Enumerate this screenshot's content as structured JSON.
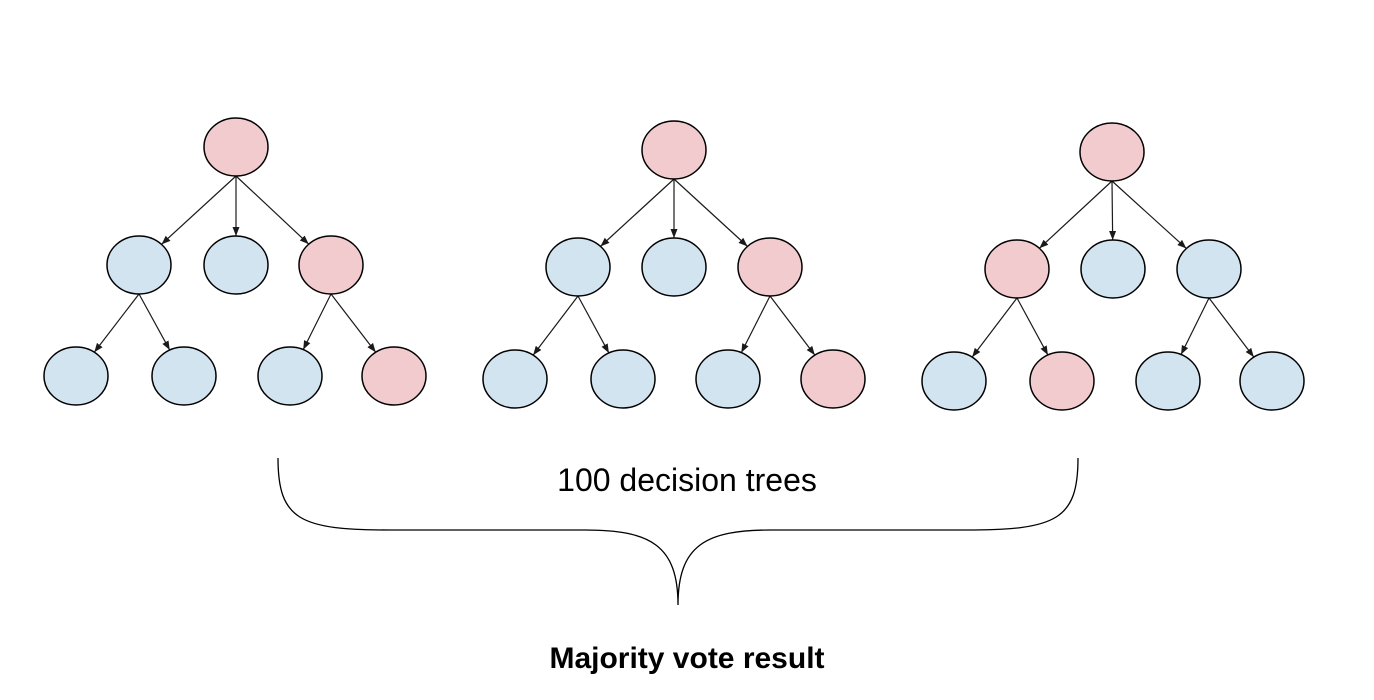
{
  "diagram": {
    "trees_label": "100 decision trees",
    "result_label": "Majority vote result"
  },
  "colors": {
    "pink_node": "#f2cbcf",
    "blue_node": "#d3e4f1",
    "edge": "#1a1a1a",
    "outline": "#000000"
  },
  "trees": [
    {
      "name": "tree-1",
      "root": "pink",
      "children": [
        {
          "color": "blue",
          "children": [
            "blue",
            "blue"
          ]
        },
        {
          "color": "blue",
          "children": []
        },
        {
          "color": "pink",
          "children": [
            "blue",
            "pink"
          ]
        }
      ]
    },
    {
      "name": "tree-2",
      "root": "pink",
      "children": [
        {
          "color": "blue",
          "children": [
            "blue",
            "blue"
          ]
        },
        {
          "color": "blue",
          "children": []
        },
        {
          "color": "pink",
          "children": [
            "blue",
            "pink"
          ]
        }
      ]
    },
    {
      "name": "tree-3",
      "root": "pink",
      "children": [
        {
          "color": "pink",
          "children": [
            "blue",
            "pink"
          ]
        },
        {
          "color": "blue",
          "children": []
        },
        {
          "color": "blue",
          "children": [
            "blue",
            "blue"
          ]
        }
      ]
    }
  ]
}
